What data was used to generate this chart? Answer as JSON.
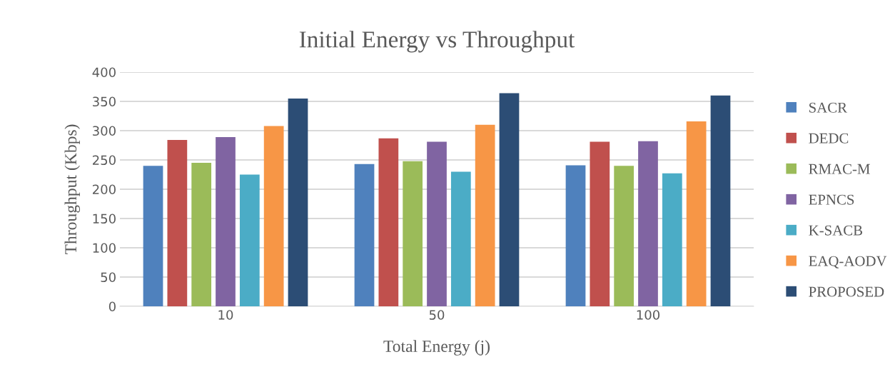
{
  "chart_data": {
    "type": "bar",
    "title": "Initial Energy vs Throughput",
    "xlabel": "Total Energy (j)",
    "ylabel": "Throughput (Kbps)",
    "categories": [
      "10",
      "50",
      "100"
    ],
    "series": [
      {
        "name": "SACR",
        "color": "#4f81bd",
        "values": [
          240,
          243,
          241
        ]
      },
      {
        "name": "DEDC",
        "color": "#c0504d",
        "values": [
          284,
          287,
          281
        ]
      },
      {
        "name": "RMAC-M",
        "color": "#9bbb59",
        "values": [
          245,
          248,
          240
        ]
      },
      {
        "name": "EPNCS",
        "color": "#8064a2",
        "values": [
          289,
          281,
          282
        ]
      },
      {
        "name": "K-SACB",
        "color": "#4bacc6",
        "values": [
          225,
          230,
          227
        ]
      },
      {
        "name": "EAQ-AODV",
        "color": "#f79646",
        "values": [
          308,
          310,
          316
        ]
      },
      {
        "name": "PROPOSED",
        "color": "#2c4d75",
        "values": [
          355,
          364,
          360
        ]
      }
    ],
    "ylim": [
      0,
      400
    ],
    "yticks": [
      0,
      50,
      100,
      150,
      200,
      250,
      300,
      350,
      400
    ],
    "grid": "y",
    "legend": "right"
  }
}
